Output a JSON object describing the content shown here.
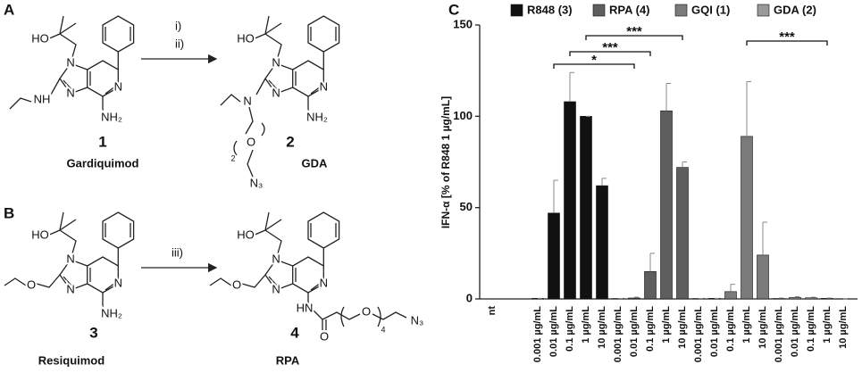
{
  "panels": {
    "A": {
      "label": "A",
      "reagents": [
        "i)",
        "ii)"
      ],
      "compounds": [
        {
          "number": "1",
          "name": "Gardiquimod",
          "atoms": [
            "HO",
            "N",
            "N",
            "N",
            "NH",
            "NH₂"
          ]
        },
        {
          "number": "2",
          "name": "GDA",
          "atoms": [
            "HO",
            "N",
            "N",
            "N",
            "N",
            "NH₂",
            "O",
            "2",
            "N₃"
          ]
        }
      ]
    },
    "B": {
      "label": "B",
      "reagents": [
        "iii)"
      ],
      "compounds": [
        {
          "number": "3",
          "name": "Resiquimod",
          "atoms": [
            "HO",
            "N",
            "N",
            "N",
            "O",
            "NH₂"
          ]
        },
        {
          "number": "4",
          "name": "RPA",
          "atoms": [
            "HO",
            "N",
            "N",
            "N",
            "O",
            "HN",
            "O",
            "O",
            "4",
            "N₃"
          ]
        }
      ]
    }
  },
  "chart_data": {
    "type": "bar",
    "panel": "C",
    "y_label": "IFN-α [% of R848 1 µg/mL]",
    "categories": [
      "nt",
      "0.001 µg/mL",
      "0.01 µg/mL",
      "0.1 µg/mL",
      "1 µg/mL",
      "10 µg/mL",
      "0.001 µg/mL",
      "0.01 µg/mL",
      "0.1 µg/mL",
      "1 µg/mL",
      "10 µg/mL",
      "0.001 µg/mL",
      "0.01 µg/mL",
      "0.1 µg/mL",
      "1 µg/mL",
      "10 µg/mL",
      "0.001 µg/mL",
      "0.01 µg/mL",
      "0.1 µg/mL",
      "1 µg/mL",
      "10 µg/mL"
    ],
    "series": [
      {
        "name": "R848 (3)",
        "color": "#111111",
        "values": [
          null,
          0.3,
          47,
          108,
          100,
          62,
          null,
          null,
          null,
          null,
          null,
          null,
          null,
          null,
          null,
          null,
          null,
          null,
          null,
          null,
          null
        ],
        "errors": [
          null,
          0,
          18,
          16,
          0,
          4,
          null,
          null,
          null,
          null,
          null,
          null,
          null,
          null,
          null,
          null,
          null,
          null,
          null,
          null,
          null
        ]
      },
      {
        "name": "RPA (4)",
        "color": "#5e5e5e",
        "values": [
          null,
          null,
          null,
          null,
          null,
          null,
          0.2,
          0.5,
          15,
          103,
          72,
          null,
          null,
          null,
          null,
          null,
          null,
          null,
          null,
          null,
          null
        ],
        "errors": [
          null,
          null,
          null,
          null,
          null,
          null,
          0,
          0.5,
          10,
          15,
          3,
          null,
          null,
          null,
          null,
          null,
          null,
          null,
          null,
          null,
          null
        ]
      },
      {
        "name": "GQI (1)",
        "color": "#7a7a7a",
        "values": [
          null,
          null,
          null,
          null,
          null,
          null,
          null,
          null,
          null,
          null,
          null,
          0.2,
          0.3,
          4,
          89,
          24,
          null,
          null,
          null,
          null,
          null
        ],
        "errors": [
          null,
          null,
          null,
          null,
          null,
          null,
          null,
          null,
          null,
          null,
          null,
          0,
          0,
          4,
          30,
          18,
          null,
          null,
          null,
          null,
          null
        ]
      },
      {
        "name": "GDA (2)",
        "color": "#9a9a9a",
        "values": [
          null,
          null,
          null,
          null,
          null,
          null,
          null,
          null,
          null,
          null,
          null,
          null,
          null,
          null,
          null,
          null,
          0.2,
          0.8,
          0.6,
          0.3,
          0.1
        ],
        "errors": [
          null,
          null,
          null,
          null,
          null,
          null,
          null,
          null,
          null,
          null,
          null,
          null,
          null,
          null,
          null,
          null,
          0.3,
          0.4,
          0.3,
          0.2,
          0
        ]
      }
    ],
    "ylim": [
      0,
      150
    ],
    "yticks": [
      0,
      50,
      100,
      150
    ],
    "annotations": [
      "*",
      "***",
      "***",
      "***"
    ],
    "legend": "top"
  }
}
